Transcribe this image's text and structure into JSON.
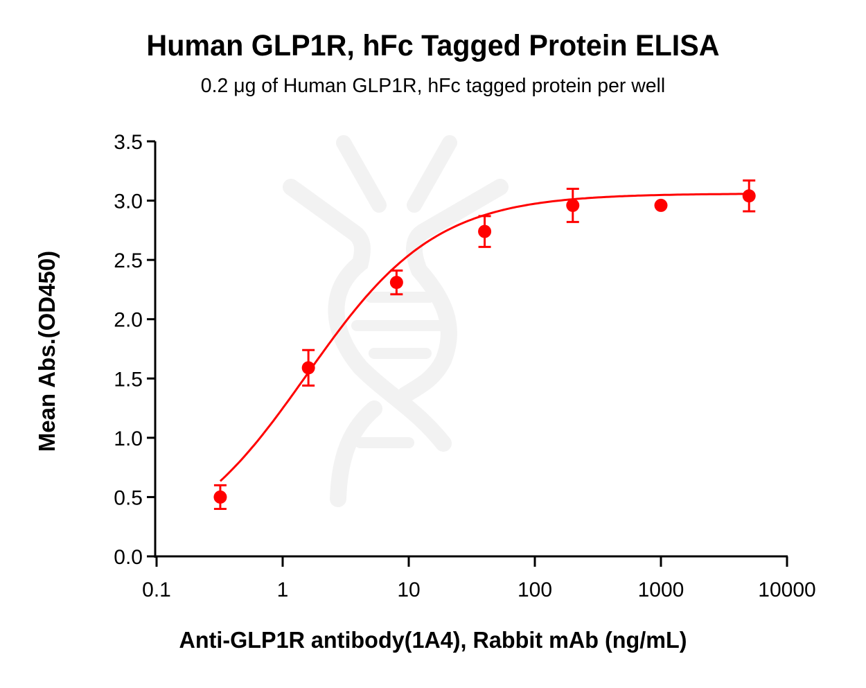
{
  "chart": {
    "title": "Human GLP1R, hFc Tagged Protein ELISA",
    "subtitle": "0.2 μg of Human GLP1R, hFc tagged protein per well",
    "xlabel": "Anti-GLP1R antibody(1A4), Rabbit mAb (ng/mL)",
    "ylabel": "Mean Abs.(OD450)"
  },
  "colors": {
    "series": "#ff0000",
    "axis": "#000000",
    "watermark": "#f2f2f2"
  },
  "chart_data": {
    "type": "scatter",
    "title": "Human GLP1R, hFc Tagged Protein ELISA",
    "subtitle": "0.2 μg of Human GLP1R, hFc tagged protein per well",
    "xlabel": "Anti-GLP1R antibody(1A4), Rabbit mAb (ng/mL)",
    "ylabel": "Mean Abs.(OD450)",
    "xscale": "log",
    "xlim": [
      0.1,
      10000
    ],
    "ylim": [
      0.0,
      3.5
    ],
    "xticks": [
      "0.1",
      "1",
      "10",
      "100",
      "1000",
      "10000"
    ],
    "yticks": [
      "0.0",
      "0.5",
      "1.0",
      "1.5",
      "2.0",
      "2.5",
      "3.0",
      "3.5"
    ],
    "grid": false,
    "legend": null,
    "fit": "4-parameter logistic (sigmoidal) curve through points",
    "series": [
      {
        "name": "Anti-GLP1R antibody(1A4)",
        "x": [
          0.32,
          1.6,
          8,
          40,
          200,
          1000,
          5000
        ],
        "y": [
          0.5,
          1.59,
          2.31,
          2.74,
          2.96,
          2.96,
          3.04
        ],
        "error": [
          0.1,
          0.15,
          0.1,
          0.13,
          0.14,
          0.0,
          0.13
        ]
      }
    ]
  }
}
